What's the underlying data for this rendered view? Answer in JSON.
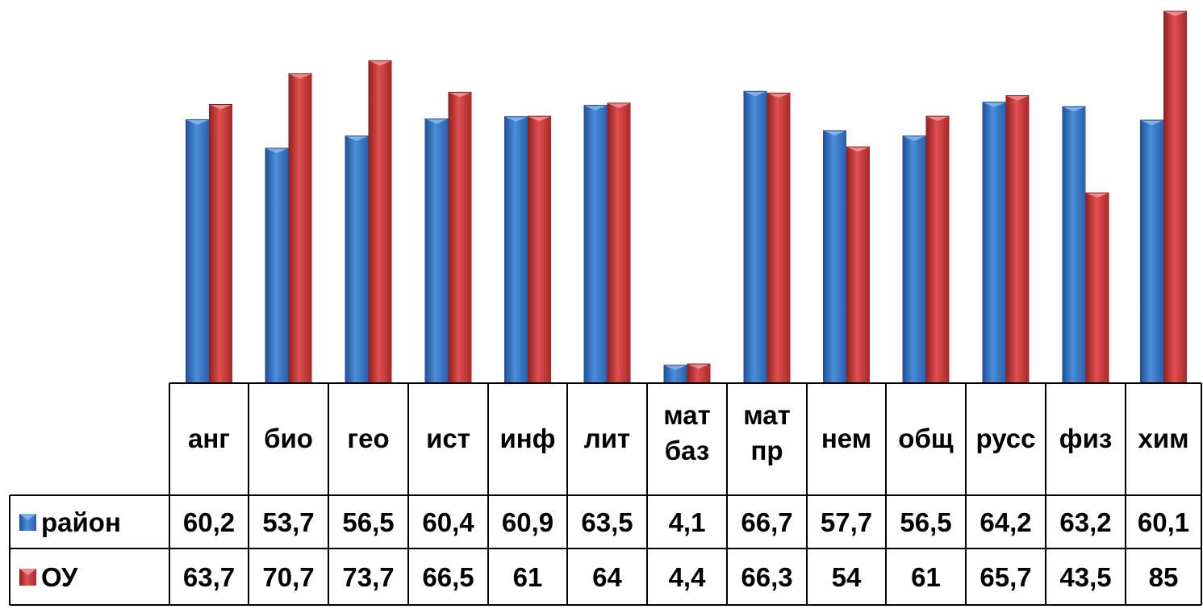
{
  "chart_data": {
    "type": "bar",
    "categories": [
      [
        "анг"
      ],
      [
        "био"
      ],
      [
        "гео"
      ],
      [
        "ист"
      ],
      [
        "инф"
      ],
      [
        "лит"
      ],
      [
        "мат",
        "баз"
      ],
      [
        "мат",
        "пр"
      ],
      [
        "нем"
      ],
      [
        "общ"
      ],
      [
        "русс"
      ],
      [
        "физ"
      ],
      [
        "хим"
      ]
    ],
    "series": [
      {
        "name": "район",
        "color": "#3A78C9",
        "values": [
          60.2,
          53.7,
          56.5,
          60.4,
          60.9,
          63.5,
          4.1,
          66.7,
          57.7,
          56.5,
          64.2,
          63.2,
          60.1
        ],
        "labels": [
          "60,2",
          "53,7",
          "56,5",
          "60,4",
          "60,9",
          "63,5",
          "4,1",
          "66,7",
          "57,7",
          "56,5",
          "64,2",
          "63,2",
          "60,1"
        ]
      },
      {
        "name": "ОУ",
        "color": "#D03A3A",
        "values": [
          63.7,
          70.7,
          73.7,
          66.5,
          61,
          64,
          4.4,
          66.3,
          54,
          61,
          65.7,
          43.5,
          85
        ],
        "labels": [
          "63,7",
          "70,7",
          "73,7",
          "66,5",
          "61",
          "64",
          "4,4",
          "66,3",
          "54",
          "61",
          "65,7",
          "43,5",
          "85"
        ]
      }
    ],
    "ylim": [
      0,
      85
    ],
    "title": "",
    "xlabel": "",
    "ylabel": "",
    "legend": "data-table",
    "grid": false
  }
}
